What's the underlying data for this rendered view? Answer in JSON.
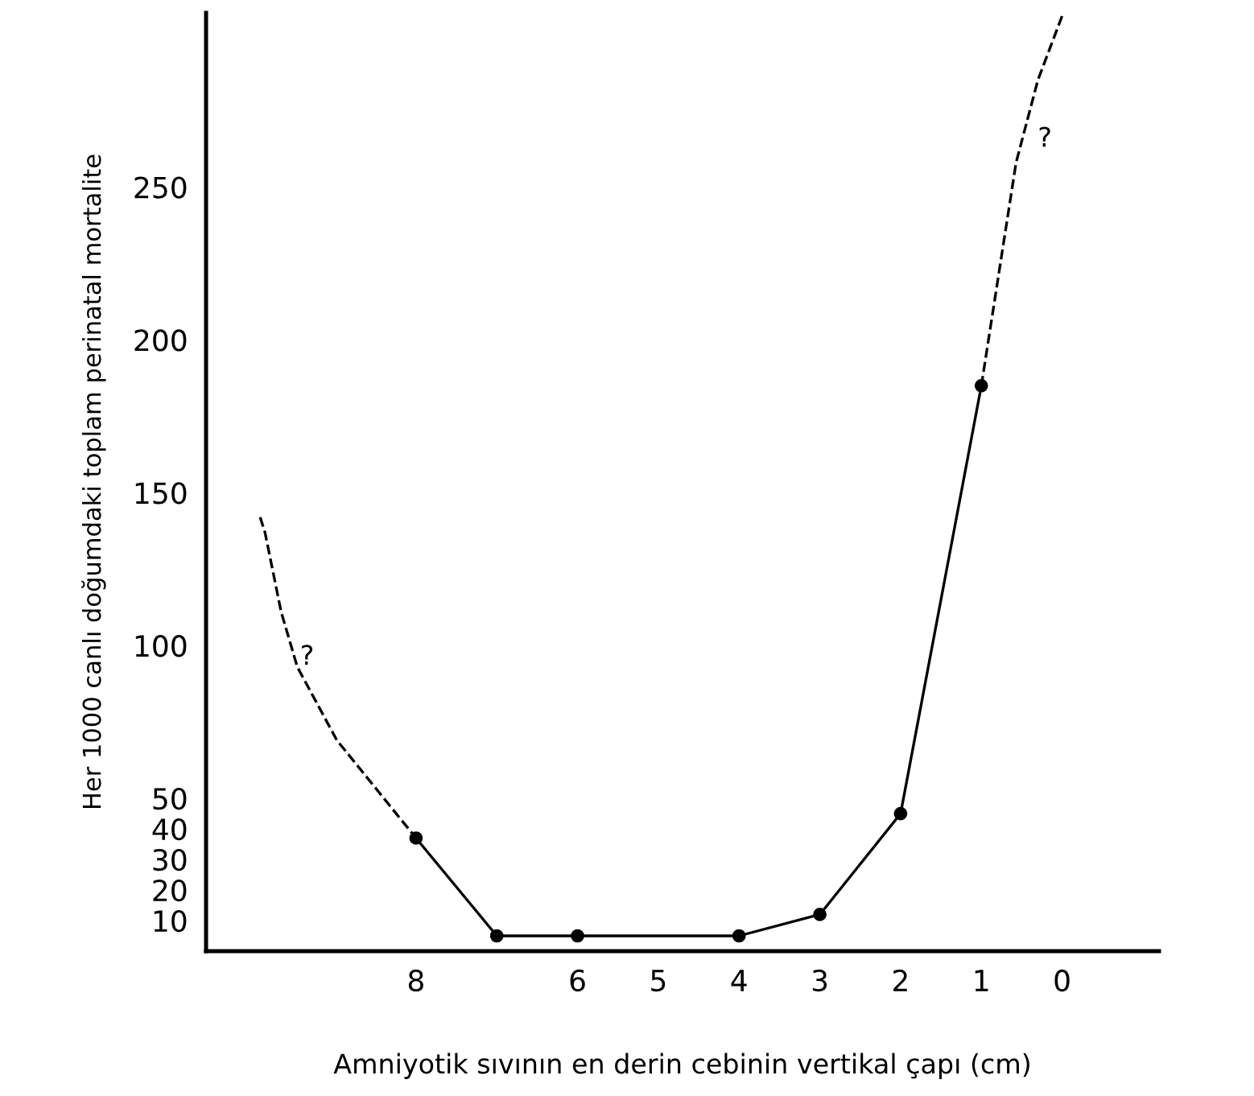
{
  "chart_data": {
    "type": "line",
    "xlabel": "Amniyotik sıvının en derin cebinin vertikal çapı (cm)",
    "ylabel": "Her 1000 canlı doğumdaki toplam perinatal mortalite",
    "xlim": [
      10.6,
      -1.2
    ],
    "ylim": [
      0,
      307
    ],
    "xticks": [
      8,
      6,
      5,
      4,
      3,
      2,
      1,
      0
    ],
    "yticks": [
      10,
      20,
      30,
      40,
      50,
      100,
      150,
      200,
      250
    ],
    "grid": false,
    "legend": false,
    "series": [
      {
        "color": "#000000",
        "x": [
          8,
          7,
          6,
          4,
          3,
          2,
          1
        ],
        "values": [
          37,
          5,
          5,
          5,
          12,
          45,
          185
        ],
        "marker": "circle",
        "line_style": "solid"
      },
      {
        "color": "#000000",
        "x": [
          9.93,
          9.87,
          9.67,
          9.47,
          8.98,
          8
        ],
        "values": [
          142,
          137,
          111,
          93,
          69,
          37
        ],
        "marker": "none",
        "line_style": "dashed"
      },
      {
        "color": "#000000",
        "x": [
          1,
          0.57,
          0.3,
          0
        ],
        "values": [
          185,
          258,
          285,
          306
        ],
        "marker": "none",
        "line_style": "dashed"
      }
    ],
    "annotations": [
      "?",
      "?"
    ]
  }
}
